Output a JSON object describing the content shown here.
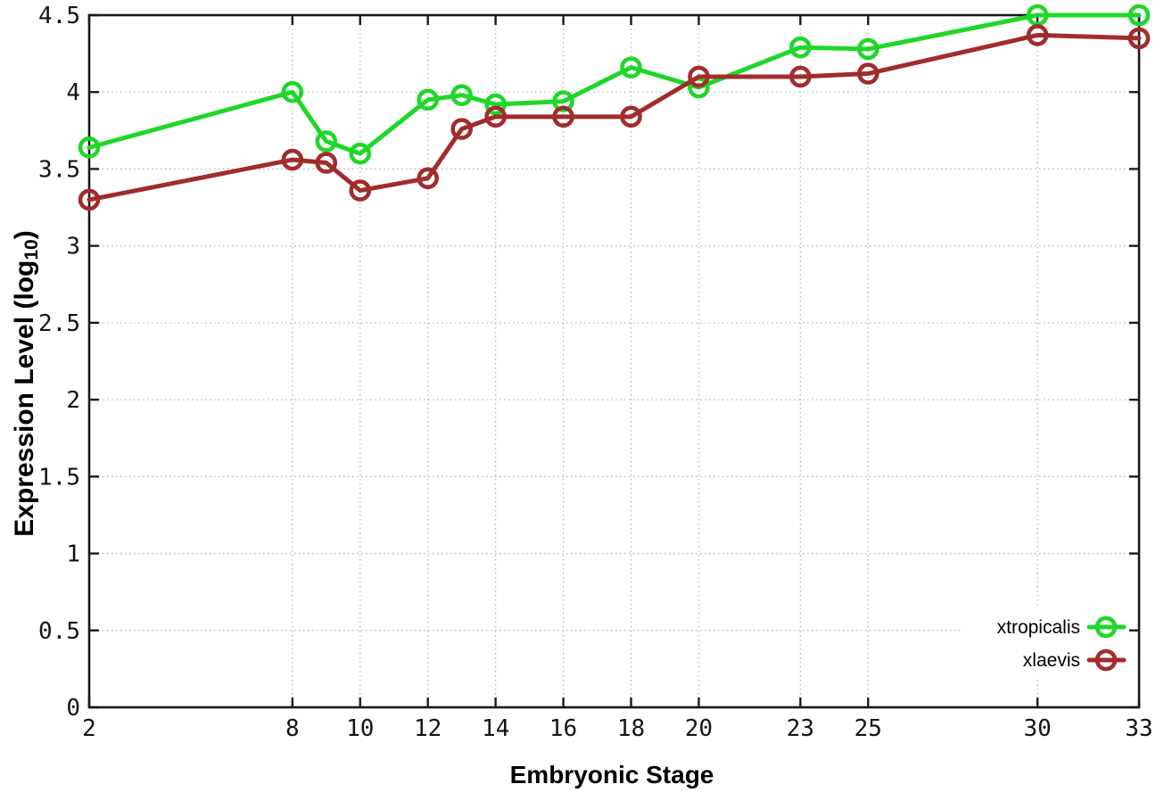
{
  "chart_data": {
    "type": "line",
    "xlabel": "Embryonic Stage",
    "ylabel": "Expression Level (log10)",
    "ylabel_parts": {
      "pre": "Expression Level (log",
      "sub": "10",
      "post": ")"
    },
    "x": [
      2,
      8,
      9,
      10,
      12,
      13,
      14,
      16,
      18,
      20,
      23,
      25,
      30,
      33
    ],
    "series": [
      {
        "name": "xtropicalis",
        "color": "#1ed728",
        "values": [
          3.64,
          4.0,
          3.68,
          3.6,
          3.95,
          3.98,
          3.92,
          3.94,
          4.16,
          4.03,
          4.29,
          4.28,
          4.5,
          4.5
        ]
      },
      {
        "name": "xlaevis",
        "color": "#a12c2c",
        "values": [
          3.3,
          3.56,
          3.54,
          3.36,
          3.44,
          3.76,
          3.84,
          3.84,
          3.84,
          4.1,
          4.1,
          4.12,
          4.37,
          4.35
        ]
      }
    ],
    "xticks": [
      "2",
      "8",
      "10",
      "12",
      "14",
      "16",
      "18",
      "20",
      "23",
      "25",
      "30",
      "33"
    ],
    "xtick_values": [
      2,
      8,
      10,
      12,
      14,
      16,
      18,
      20,
      23,
      25,
      30,
      33
    ],
    "ytick_labels": [
      "0",
      "0.5",
      "1",
      "1.5",
      "2",
      "2.5",
      "3",
      "3.5",
      "4",
      "4.5"
    ],
    "ytick_values": [
      0,
      0.5,
      1,
      1.5,
      2,
      2.5,
      3,
      3.5,
      4,
      4.5
    ],
    "xlim": [
      2,
      33
    ],
    "ylim": [
      0,
      4.5
    ],
    "grid": true,
    "legend_position": "bottom-right",
    "marker": "open-circle",
    "colors": {
      "grid": "#b8b8b8",
      "axis": "#1a1a1a",
      "text": "#000000",
      "background": "#ffffff"
    }
  }
}
